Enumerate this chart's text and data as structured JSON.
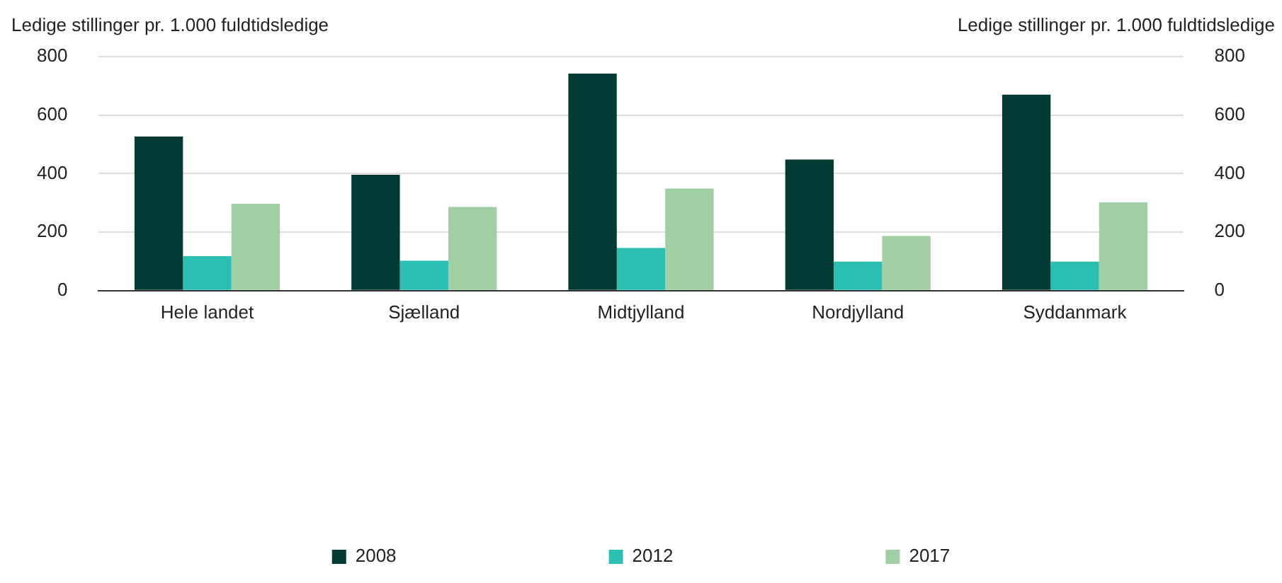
{
  "chart_data": {
    "type": "bar",
    "ylabel": "Ledige stillinger pr. 1.000 fuldtidsledige",
    "y2label": "Ledige stillinger pr. 1.000 fuldtidsledige",
    "categories": [
      "Hele landet",
      "Sjælland",
      "Midtjylland",
      "Nordjylland",
      "Syddanmark"
    ],
    "series": [
      {
        "name": "2008",
        "color": "#023a35",
        "values": [
          527,
          396,
          742,
          448,
          670
        ]
      },
      {
        "name": "2012",
        "color": "#2bbfb3",
        "values": [
          118,
          102,
          146,
          99,
          99
        ]
      },
      {
        "name": "2017",
        "color": "#9fcfa2",
        "values": [
          297,
          286,
          349,
          187,
          302
        ]
      }
    ],
    "ylim": [
      0,
      800
    ],
    "yticks": [
      0,
      200,
      400,
      600,
      800
    ],
    "y2lim": [
      0,
      800
    ],
    "y2ticks": [
      0,
      200,
      400,
      600,
      800
    ],
    "grid": "y",
    "legend": "bottom"
  }
}
